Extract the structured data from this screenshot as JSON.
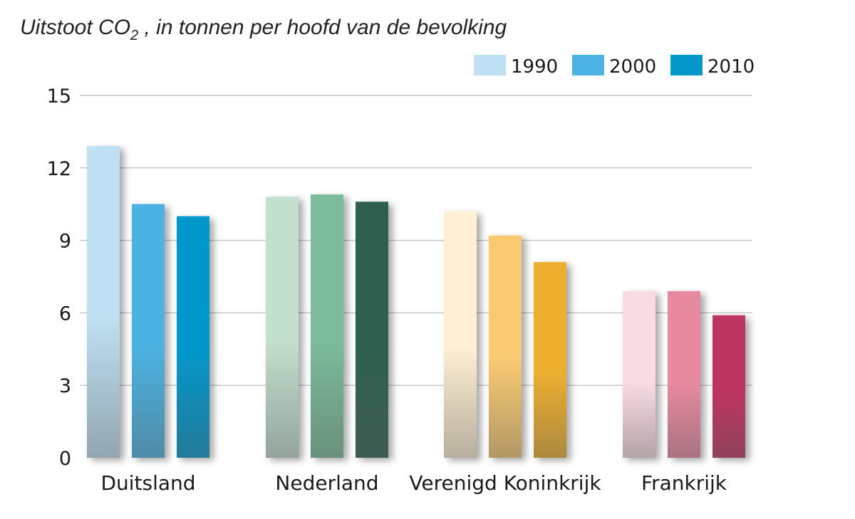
{
  "chart_data": {
    "type": "bar",
    "title": {
      "main": "Uitstoot CO",
      "subscript": "2",
      "suffix": " , in tonnen per hoofd van de bevolking"
    },
    "categories": [
      "Duitsland",
      "Nederland",
      "Verenigd Koninkrijk",
      "Frankrijk"
    ],
    "series": [
      {
        "name": "1990",
        "values": [
          12.9,
          10.8,
          10.2,
          6.9
        ]
      },
      {
        "name": "2000",
        "values": [
          10.5,
          10.9,
          9.2,
          6.9
        ]
      },
      {
        "name": "2010",
        "values": [
          10.0,
          10.6,
          8.1,
          5.9
        ]
      }
    ],
    "ylim": [
      0,
      15
    ],
    "yticks": [
      0,
      3,
      6,
      9,
      12,
      15
    ],
    "grid": true,
    "legend_position": "top-right",
    "legend_colors": [
      "#bfe0f2",
      "#4cb3e3",
      "#0397cc"
    ],
    "category_colors": [
      [
        "#bfe0f2",
        "#4cb3e3",
        "#0397cc"
      ],
      [
        "#c3dfcf",
        "#7bbc9c",
        "#2e6150"
      ],
      [
        "#fff0d4",
        "#f9ca72",
        "#edb02f"
      ],
      [
        "#f9dbe2",
        "#e78aa0",
        "#bc3660"
      ]
    ]
  }
}
